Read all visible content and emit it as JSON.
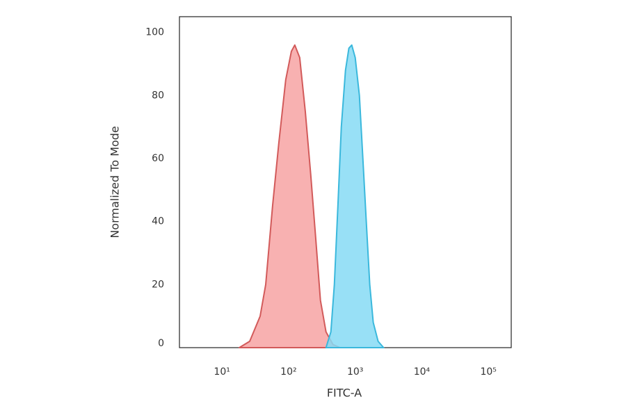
{
  "chart_data": {
    "type": "area",
    "x_label": "FITC-A",
    "y_label": "Normalized To Mode",
    "xscale": "log",
    "xlim": [
      2.3,
      220000
    ],
    "ylim": [
      0,
      105
    ],
    "xticks": [
      {
        "value": 10,
        "label": "10¹"
      },
      {
        "value": 100,
        "label": "10²"
      },
      {
        "value": 1000,
        "label": "10³"
      },
      {
        "value": 10000,
        "label": "10⁴"
      },
      {
        "value": 100000,
        "label": "10⁵"
      }
    ],
    "yticks": [
      0,
      20,
      40,
      60,
      80,
      100
    ],
    "series": [
      {
        "color": "#f7a3a3",
        "line_color": "#d25a5a",
        "x": [
          18.2,
          26.1,
          37.4,
          45.3,
          57.5,
          71.5,
          90.7,
          110,
          124,
          147,
          178,
          215,
          255,
          301,
          365,
          464,
          590
        ],
        "values": [
          0,
          2,
          10,
          20,
          45,
          65,
          85,
          94,
          96,
          92,
          75,
          55,
          35,
          15,
          5,
          1,
          0
        ]
      },
      {
        "color": "#86daf5",
        "line_color": "#3ab8dc",
        "x": [
          365,
          431,
          487,
          550,
          619,
          714,
          805,
          887,
          1000,
          1155,
          1303,
          1468,
          1656,
          1867,
          2208,
          2672
        ],
        "values": [
          0,
          5,
          20,
          45,
          70,
          88,
          95,
          96,
          92,
          80,
          60,
          40,
          20,
          8,
          2,
          0
        ]
      }
    ]
  }
}
